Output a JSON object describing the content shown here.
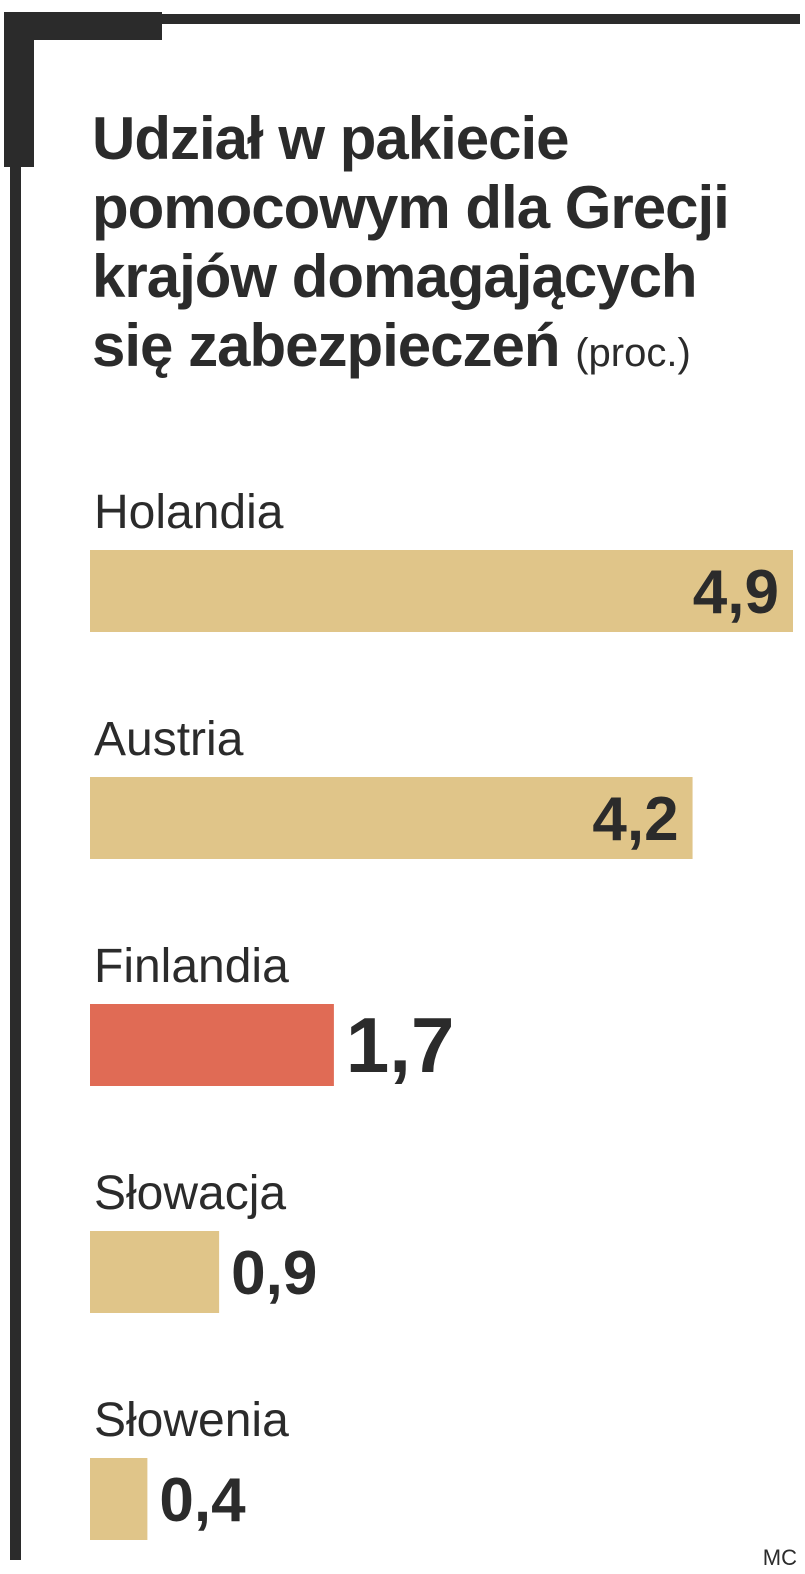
{
  "chart_data": {
    "type": "bar",
    "orientation": "horizontal",
    "title_lines": [
      "Udział w pakiecie",
      "pomocowym dla Grecji",
      "krajów domagających",
      "się zabezpieczeń"
    ],
    "unit": "(proc.)",
    "categories": [
      "Holandia",
      "Austria",
      "Finlandia",
      "Słowacja",
      "Słowenia"
    ],
    "values": [
      4.9,
      4.2,
      1.7,
      0.9,
      0.4
    ],
    "value_labels": [
      "4,9",
      "4,2",
      "1,7",
      "0,9",
      "0,4"
    ],
    "highlight_index": 2,
    "colors": {
      "bar": "#e0c589",
      "highlight": "#e06b55",
      "text": "#2b2b2b"
    },
    "xlim": [
      0,
      4.9
    ],
    "grid": false
  },
  "credit": "MC"
}
